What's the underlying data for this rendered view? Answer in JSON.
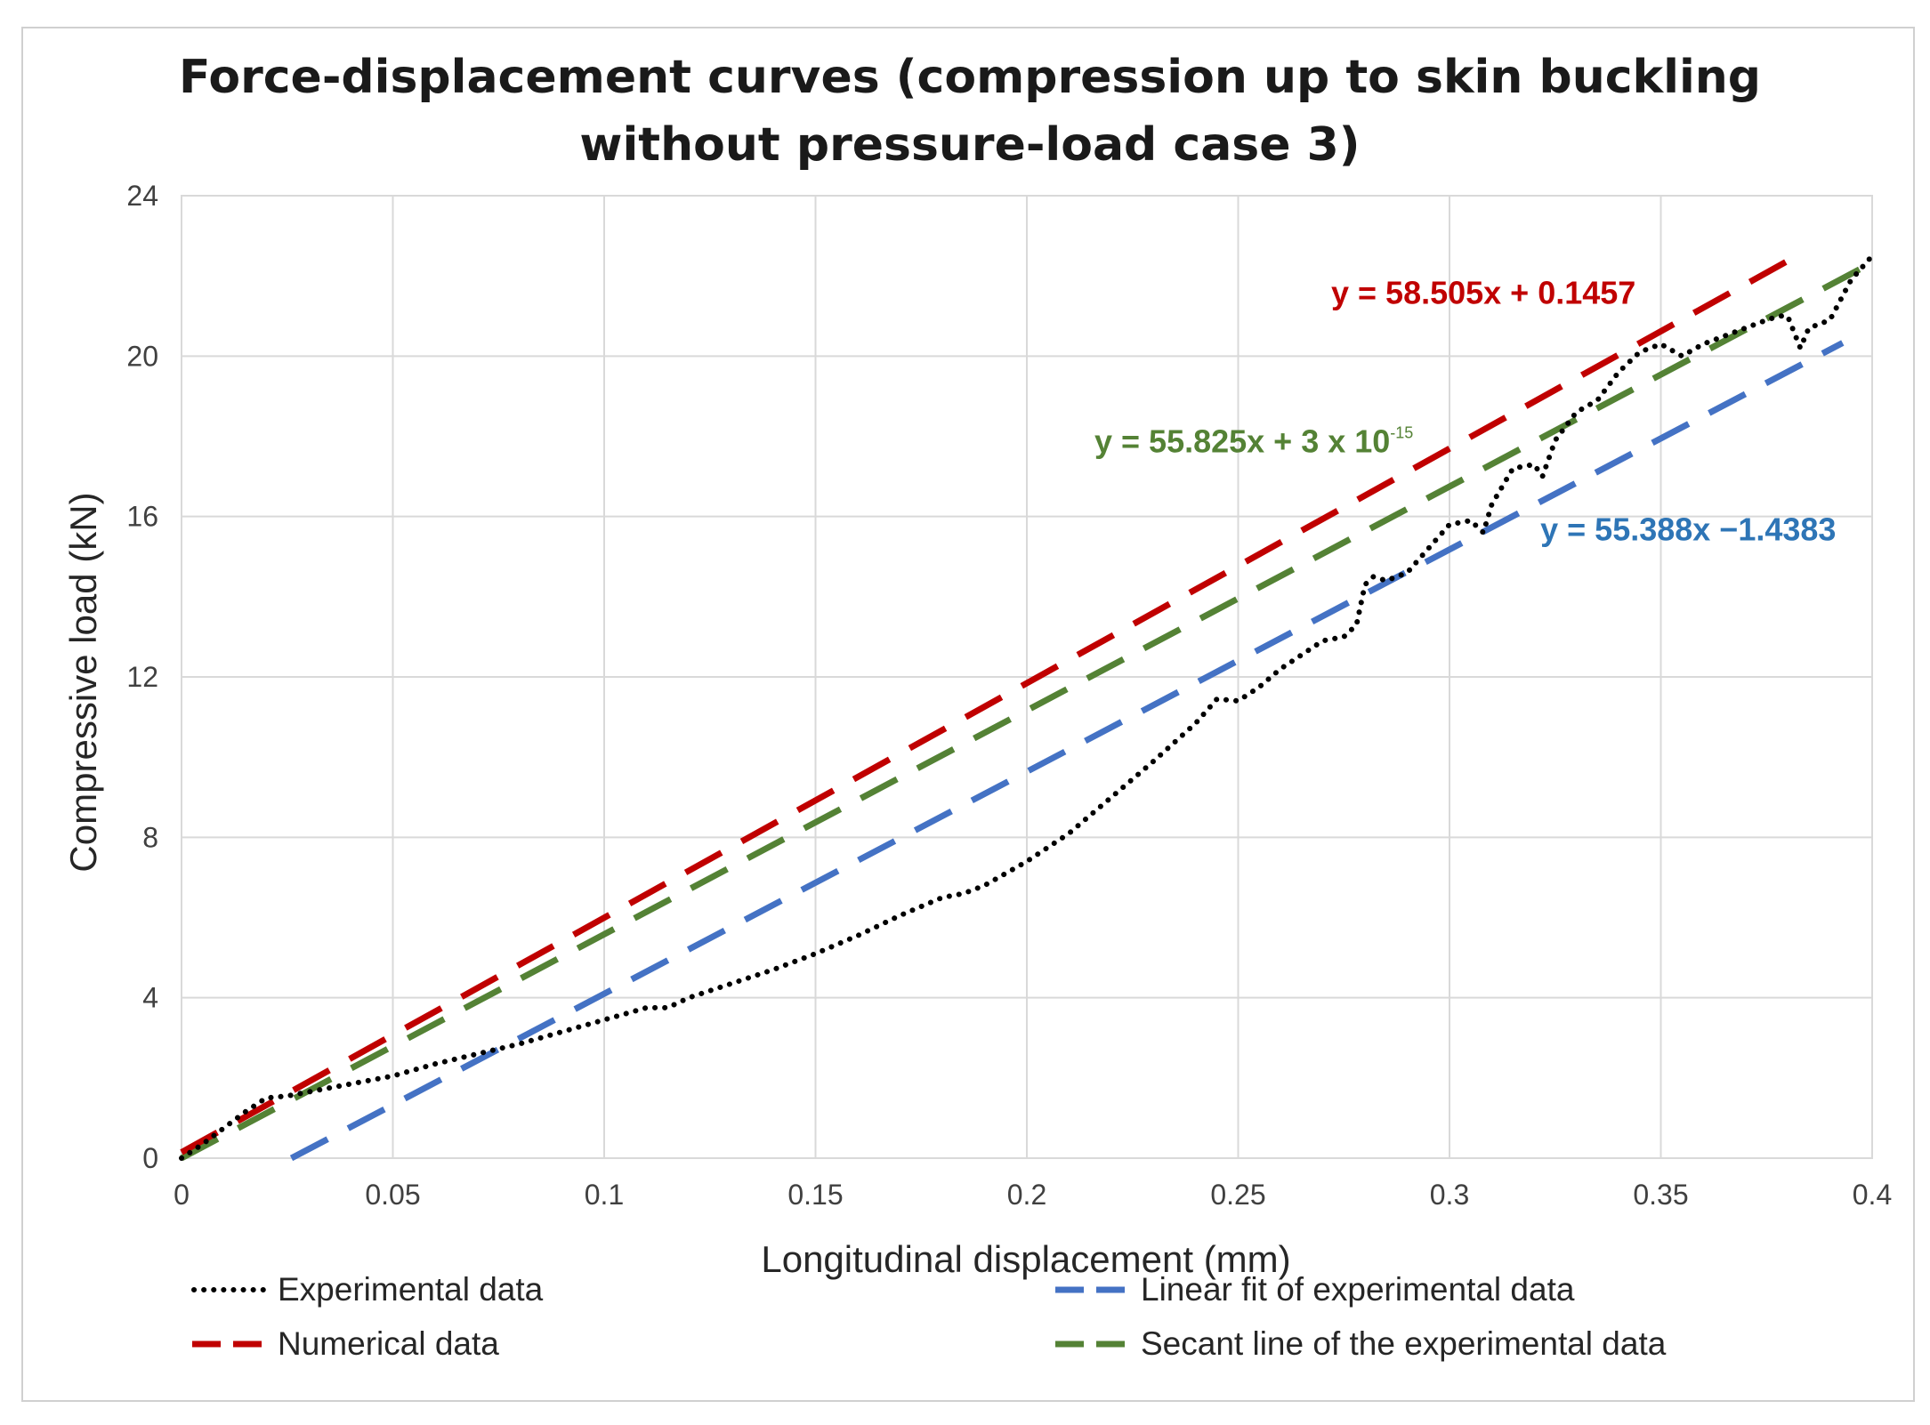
{
  "chart_data": {
    "type": "line",
    "title_lines": [
      "Force-displacement curves (compression up to skin buckling",
      "without pressure-load case 3)"
    ],
    "xlabel": "Longitudinal displacement (mm)",
    "ylabel": "Compressive load (kN)",
    "xlim": [
      0,
      0.4
    ],
    "ylim": [
      0,
      24
    ],
    "x_ticks": [
      0,
      0.05,
      0.1,
      0.15,
      0.2,
      0.25,
      0.3,
      0.35,
      0.4
    ],
    "x_tick_labels": [
      "0",
      "0.05",
      "0.1",
      "0.15",
      "0.2",
      "0.25",
      "0.3",
      "0.35",
      "0.4"
    ],
    "y_ticks": [
      0,
      4,
      8,
      12,
      16,
      20,
      24
    ],
    "y_tick_labels": [
      "0",
      "4",
      "8",
      "12",
      "16",
      "20",
      "24"
    ],
    "grid": true,
    "series": [
      {
        "name": "Experimental data",
        "style": "dotted",
        "color": "#000000",
        "x": [
          0,
          0.005,
          0.01,
          0.015,
          0.02,
          0.025,
          0.03,
          0.04,
          0.05,
          0.06,
          0.07,
          0.08,
          0.09,
          0.1,
          0.105,
          0.11,
          0.115,
          0.12,
          0.13,
          0.14,
          0.15,
          0.16,
          0.17,
          0.18,
          0.185,
          0.19,
          0.2,
          0.21,
          0.22,
          0.23,
          0.24,
          0.245,
          0.25,
          0.255,
          0.26,
          0.265,
          0.27,
          0.275,
          0.278,
          0.28,
          0.282,
          0.285,
          0.29,
          0.295,
          0.3,
          0.305,
          0.308,
          0.31,
          0.315,
          0.32,
          0.322,
          0.325,
          0.33,
          0.335,
          0.34,
          0.345,
          0.35,
          0.355,
          0.36,
          0.365,
          0.37,
          0.375,
          0.378,
          0.38,
          0.383,
          0.385,
          0.39,
          0.395,
          0.4
        ],
        "y": [
          0,
          0.35,
          0.75,
          1.15,
          1.5,
          1.55,
          1.65,
          1.85,
          2.05,
          2.35,
          2.6,
          2.85,
          3.15,
          3.45,
          3.6,
          3.75,
          3.75,
          4.0,
          4.35,
          4.7,
          5.1,
          5.55,
          6.05,
          6.5,
          6.6,
          6.8,
          7.4,
          8.1,
          9.0,
          9.9,
          10.85,
          11.45,
          11.4,
          11.75,
          12.2,
          12.55,
          12.9,
          13.0,
          13.3,
          14.3,
          14.5,
          14.4,
          14.6,
          15.2,
          15.8,
          15.9,
          15.6,
          16.3,
          17.2,
          17.3,
          17.0,
          17.9,
          18.6,
          18.9,
          19.6,
          20.1,
          20.3,
          20.0,
          20.3,
          20.5,
          20.7,
          20.9,
          21.0,
          21.0,
          20.2,
          20.7,
          20.9,
          21.9,
          22.5
        ]
      },
      {
        "name": "Numerical data",
        "style": "dashed",
        "color": "#c00000",
        "x": [
          0,
          0.383
        ],
        "y": [
          0.1457,
          22.55
        ]
      },
      {
        "name": "Linear fit of experimental data",
        "style": "dashed",
        "color": "#4472c4",
        "x": [
          0.026,
          0.393
        ],
        "y": [
          0,
          20.33
        ]
      },
      {
        "name": "Secant line of the experimental data",
        "style": "dashed",
        "color": "#548235",
        "x": [
          0,
          0.4
        ],
        "y": [
          0,
          22.33
        ]
      }
    ],
    "annotations": [
      {
        "text": "y = 58.505x + 0.1457",
        "color": "#c00000",
        "series": "Numerical data",
        "x": 0.272,
        "y": 21.3,
        "anchor": "start"
      },
      {
        "text": "y = 55.825x + 3 x 10",
        "sup": "-15",
        "color": "#548235",
        "series": "Secant line of the experimental data",
        "x": 0.216,
        "y": 17.6,
        "anchor": "start"
      },
      {
        "text": "y = 55.388x −1.4383",
        "color": "#2e75b6",
        "series": "Linear fit of experimental data",
        "x": 0.3215,
        "y": 15.4,
        "anchor": "start"
      }
    ],
    "legend": {
      "placement": "bottom",
      "entries": [
        {
          "label": "Experimental data",
          "series": "Experimental data"
        },
        {
          "label": "Linear fit of experimental data",
          "series": "Linear fit of experimental data"
        },
        {
          "label": "Numerical data",
          "series": "Numerical data"
        },
        {
          "label": "Secant line of the experimental data",
          "series": "Secant line of the experimental data"
        }
      ]
    }
  }
}
